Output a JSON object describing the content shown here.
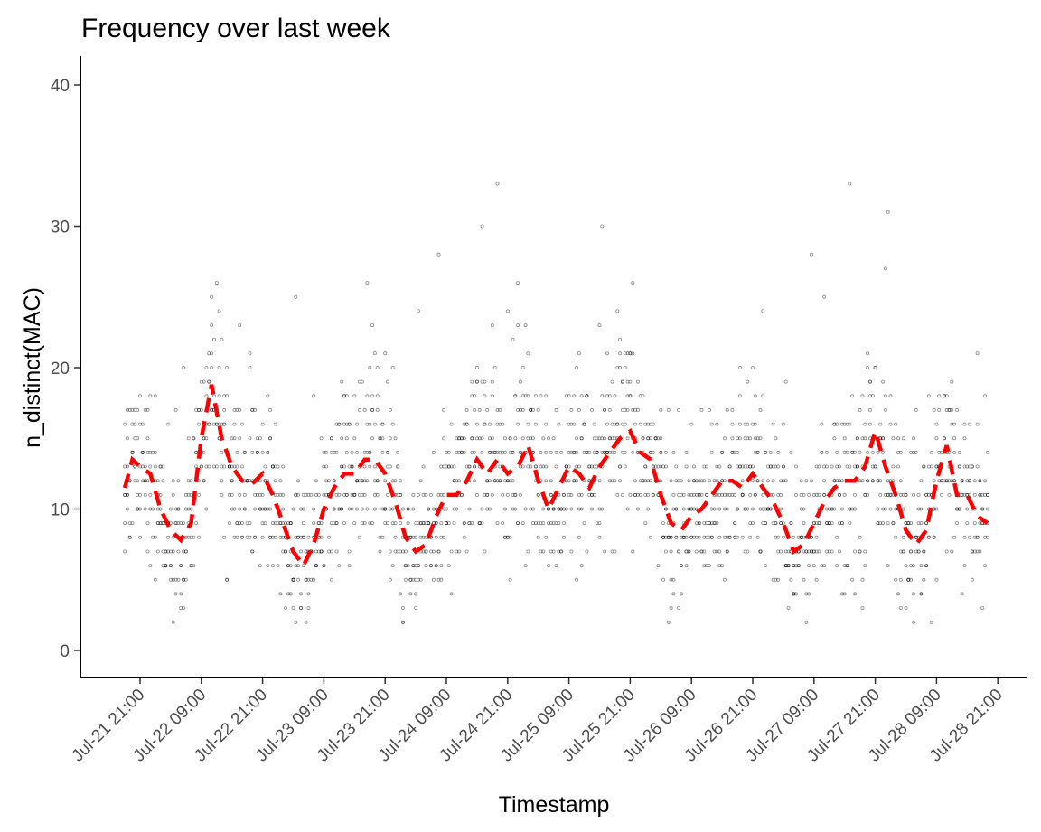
{
  "chart_data": {
    "type": "scatter",
    "title": "Frequency over last week",
    "xlabel": "Timestamp",
    "ylabel": "n_distinct(MAC)",
    "ylim": [
      0,
      40
    ],
    "yticks": [
      0,
      10,
      20,
      30,
      40
    ],
    "xlim_hours": [
      -9.5,
      172.5
    ],
    "xticks": [
      {
        "label": "Jul-21 21:00",
        "hour": 0
      },
      {
        "label": "Jul-22 09:00",
        "hour": 12
      },
      {
        "label": "Jul-22 21:00",
        "hour": 24
      },
      {
        "label": "Jul-23 09:00",
        "hour": 36
      },
      {
        "label": "Jul-23 21:00",
        "hour": 48
      },
      {
        "label": "Jul-24 09:00",
        "hour": 60
      },
      {
        "label": "Jul-24 21:00",
        "hour": 72
      },
      {
        "label": "Jul-25 09:00",
        "hour": 84
      },
      {
        "label": "Jul-25 21:00",
        "hour": 96
      },
      {
        "label": "Jul-26 09:00",
        "hour": 108
      },
      {
        "label": "Jul-26 21:00",
        "hour": 120
      },
      {
        "label": "Jul-27 09:00",
        "hour": 132
      },
      {
        "label": "Jul-27 21:00",
        "hour": 144
      },
      {
        "label": "Jul-28 09:00",
        "hour": 156
      },
      {
        "label": "Jul-28 21:00",
        "hour": 168
      }
    ],
    "grid": false,
    "legend": "none",
    "point_color": "#000000",
    "trend_color": "#ff0000",
    "series": [
      {
        "kind": "points",
        "x_start_hour": -3,
        "x_end_hour": 166,
        "points_per_time": 6,
        "time_step_hours": 0.5,
        "approx_points": 2000
      },
      {
        "kind": "dashed-trend",
        "points": [
          {
            "x": -3,
            "y": 11.5
          },
          {
            "x": -1.5,
            "y": 13.5
          },
          {
            "x": 0,
            "y": 13
          },
          {
            "x": 2,
            "y": 12.5
          },
          {
            "x": 4,
            "y": 10
          },
          {
            "x": 6,
            "y": 8.5
          },
          {
            "x": 8,
            "y": 7.8
          },
          {
            "x": 10,
            "y": 9
          },
          {
            "x": 12,
            "y": 15
          },
          {
            "x": 14,
            "y": 18.8
          },
          {
            "x": 16,
            "y": 15
          },
          {
            "x": 18,
            "y": 13
          },
          {
            "x": 20,
            "y": 12
          },
          {
            "x": 22,
            "y": 11.8
          },
          {
            "x": 24,
            "y": 12.5
          },
          {
            "x": 26,
            "y": 11
          },
          {
            "x": 28,
            "y": 9
          },
          {
            "x": 30,
            "y": 7
          },
          {
            "x": 32,
            "y": 6
          },
          {
            "x": 34,
            "y": 7.5
          },
          {
            "x": 36,
            "y": 10
          },
          {
            "x": 38,
            "y": 11.5
          },
          {
            "x": 40,
            "y": 12.5
          },
          {
            "x": 42,
            "y": 12.5
          },
          {
            "x": 44,
            "y": 13.5
          },
          {
            "x": 46,
            "y": 13.5
          },
          {
            "x": 48,
            "y": 12.5
          },
          {
            "x": 50,
            "y": 10.5
          },
          {
            "x": 52,
            "y": 8
          },
          {
            "x": 54,
            "y": 7
          },
          {
            "x": 56,
            "y": 7.5
          },
          {
            "x": 58,
            "y": 9.5
          },
          {
            "x": 60,
            "y": 11
          },
          {
            "x": 62,
            "y": 11
          },
          {
            "x": 64,
            "y": 12
          },
          {
            "x": 66,
            "y": 13.5
          },
          {
            "x": 68,
            "y": 12.5
          },
          {
            "x": 70,
            "y": 13.5
          },
          {
            "x": 72,
            "y": 12.5
          },
          {
            "x": 74,
            "y": 13
          },
          {
            "x": 76,
            "y": 14.5
          },
          {
            "x": 78,
            "y": 12
          },
          {
            "x": 80,
            "y": 10
          },
          {
            "x": 82,
            "y": 11.5
          },
          {
            "x": 84,
            "y": 13
          },
          {
            "x": 86,
            "y": 12.5
          },
          {
            "x": 88,
            "y": 11.5
          },
          {
            "x": 90,
            "y": 13
          },
          {
            "x": 92,
            "y": 14
          },
          {
            "x": 94,
            "y": 15
          },
          {
            "x": 96,
            "y": 15.5
          },
          {
            "x": 98,
            "y": 14
          },
          {
            "x": 100,
            "y": 13.5
          },
          {
            "x": 102,
            "y": 11
          },
          {
            "x": 104,
            "y": 9
          },
          {
            "x": 106,
            "y": 8.5
          },
          {
            "x": 108,
            "y": 9.5
          },
          {
            "x": 110,
            "y": 10
          },
          {
            "x": 112,
            "y": 11
          },
          {
            "x": 114,
            "y": 12
          },
          {
            "x": 116,
            "y": 12
          },
          {
            "x": 118,
            "y": 11.5
          },
          {
            "x": 120,
            "y": 12.5
          },
          {
            "x": 122,
            "y": 11.5
          },
          {
            "x": 124,
            "y": 10.5
          },
          {
            "x": 126,
            "y": 9
          },
          {
            "x": 128,
            "y": 7
          },
          {
            "x": 130,
            "y": 7.5
          },
          {
            "x": 132,
            "y": 9
          },
          {
            "x": 134,
            "y": 10.5
          },
          {
            "x": 136,
            "y": 11.5
          },
          {
            "x": 138,
            "y": 12
          },
          {
            "x": 140,
            "y": 12
          },
          {
            "x": 142,
            "y": 13
          },
          {
            "x": 144,
            "y": 15.5
          },
          {
            "x": 146,
            "y": 13
          },
          {
            "x": 148,
            "y": 11
          },
          {
            "x": 150,
            "y": 8.5
          },
          {
            "x": 152,
            "y": 7.5
          },
          {
            "x": 154,
            "y": 8.5
          },
          {
            "x": 156,
            "y": 12
          },
          {
            "x": 158,
            "y": 14.5
          },
          {
            "x": 160,
            "y": 11
          },
          {
            "x": 162,
            "y": 11
          },
          {
            "x": 164,
            "y": 9.5
          },
          {
            "x": 166,
            "y": 9
          }
        ]
      }
    ]
  }
}
